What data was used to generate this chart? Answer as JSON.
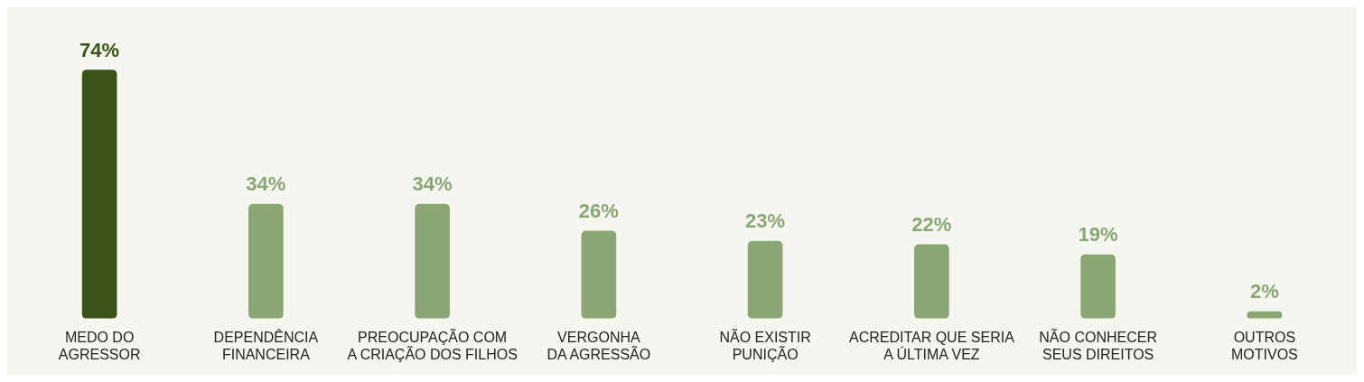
{
  "chart_data": {
    "type": "bar",
    "categories": [
      "MEDO DO\nAGRESSOR",
      "DEPENDÊNCIA\nFINANCEIRA",
      "PREOCUPAÇÃO COM\nA CRIAÇÃO DOS FILHOS",
      "VERGONHA\nDA AGRESSÃO",
      "NÃO EXISTIR\nPUNIÇÃO",
      "ACREDITAR QUE SERIA\nA ÚLTIMA VEZ",
      "NÃO CONHECER\nSEUS DIREITOS",
      "OUTROS\nMOTIVOS"
    ],
    "values": [
      74,
      34,
      34,
      26,
      23,
      22,
      19,
      2
    ],
    "colors": [
      "#3a5216",
      "#8aa672",
      "#8aa672",
      "#8aa672",
      "#8aa672",
      "#8aa672",
      "#8aa672",
      "#8aa672"
    ],
    "value_labels": [
      "74%",
      "34%",
      "34%",
      "26%",
      "23%",
      "22%",
      "19%",
      "2%"
    ],
    "grid": false,
    "legend": false
  }
}
